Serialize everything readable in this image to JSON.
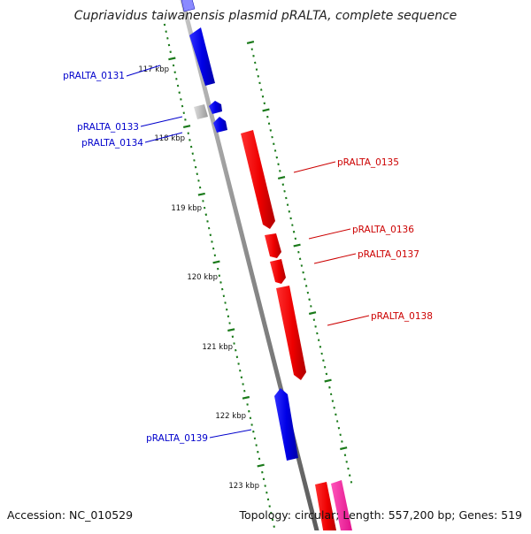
{
  "title": "Cupriavidus taiwanensis plasmid pRALTA, complete sequence",
  "accession_text": "Accession: NC_010529",
  "summary_text": "Topology: circular; Length: 557,200 bp; Genes: 519",
  "colors": {
    "forward": "#0000ee",
    "reverse": "#ee0000",
    "rna": "#ff2aa0",
    "other": "#bbbbbb",
    "tick": "#1a7a1a",
    "backbone": "#808080"
  },
  "scale_labels": [
    "117 kbp",
    "118 kbp",
    "119 kbp",
    "120 kbp",
    "121 kbp",
    "122 kbp",
    "123 kbp"
  ],
  "genes": [
    {
      "label": "pRALTA_0131",
      "strand": "forward"
    },
    {
      "label": "pRALTA_0133",
      "strand": "forward"
    },
    {
      "label": "pRALTA_0134",
      "strand": "forward"
    },
    {
      "label": "pRALTA_0135",
      "strand": "reverse"
    },
    {
      "label": "pRALTA_0136",
      "strand": "reverse"
    },
    {
      "label": "pRALTA_0137",
      "strand": "reverse"
    },
    {
      "label": "pRALTA_0138",
      "strand": "reverse"
    },
    {
      "label": "pRALTA_0139",
      "strand": "forward"
    }
  ]
}
